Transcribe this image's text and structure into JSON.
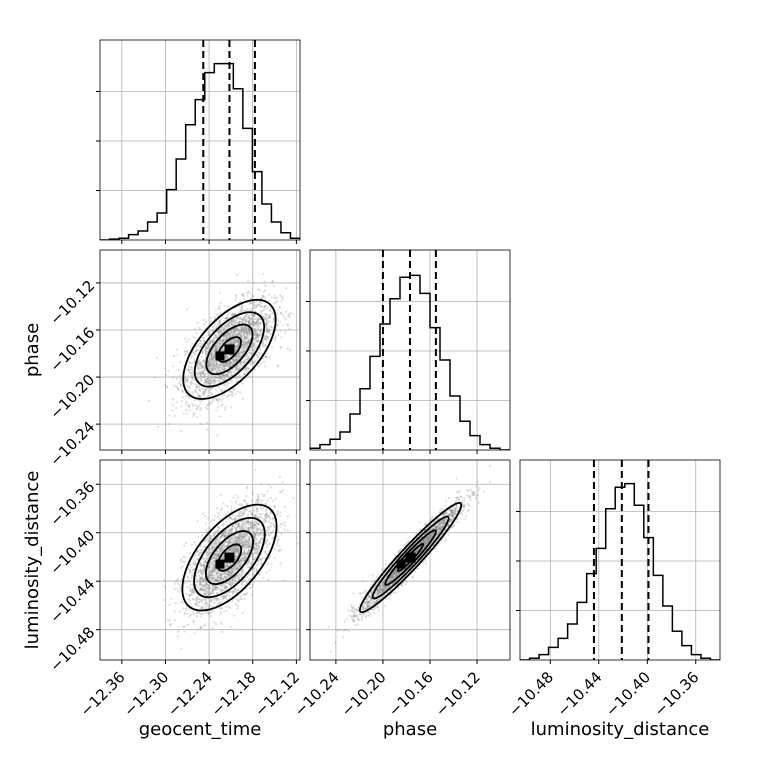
{
  "chart_data": {
    "type": "corner",
    "parameters": [
      {
        "name": "geocent_time",
        "label": "geocent_time",
        "lim": [
          -12.39,
          -12.115
        ],
        "ticks": [
          -12.36,
          -12.3,
          -12.24,
          -12.18,
          -12.12
        ],
        "tick_labels": [
          "−12.36",
          "−12.30",
          "−12.24",
          "−12.18",
          "−12.12"
        ],
        "mean": -12.212,
        "sigma": 0.0295,
        "quantiles": [
          -12.248,
          -12.212,
          -12.177
        ],
        "hist": [
          0.0,
          0.005,
          0.01,
          0.03,
          0.05,
          0.1,
          0.15,
          0.28,
          0.45,
          0.64,
          0.78,
          0.93,
          0.98,
          0.98,
          0.84,
          0.62,
          0.38,
          0.2,
          0.1,
          0.04,
          0.01
        ]
      },
      {
        "name": "phase",
        "label": "phase",
        "lim": [
          -10.262,
          -10.092
        ],
        "ticks": [
          -10.24,
          -10.2,
          -10.16,
          -10.12
        ],
        "tick_labels": [
          "−10.24",
          "−10.20",
          "−10.16",
          "−10.12"
        ],
        "mean": -10.1765,
        "sigma": 0.0205,
        "quantiles": [
          -10.2,
          -10.177,
          -10.155
        ],
        "hist": [
          0.01,
          0.03,
          0.06,
          0.1,
          0.2,
          0.34,
          0.52,
          0.7,
          0.84,
          0.96,
          0.97,
          0.87,
          0.68,
          0.5,
          0.3,
          0.16,
          0.08,
          0.03,
          0.01,
          0.0
        ]
      },
      {
        "name": "luminosity_distance",
        "label": "luminosity_distance",
        "lim": [
          -10.505,
          -10.34
        ],
        "ticks": [
          -10.48,
          -10.44,
          -10.4,
          -10.36
        ],
        "tick_labels": [
          "−10.48",
          "−10.44",
          "−10.40",
          "−10.36"
        ],
        "mean": -10.4205,
        "sigma": 0.0215,
        "quantiles": [
          -10.444,
          -10.421,
          -10.399
        ],
        "hist": [
          0.0,
          0.01,
          0.03,
          0.07,
          0.12,
          0.2,
          0.32,
          0.48,
          0.62,
          0.84,
          0.96,
          0.98,
          0.86,
          0.68,
          0.47,
          0.3,
          0.16,
          0.08,
          0.03,
          0.01,
          0.0
        ]
      }
    ],
    "correlations": [
      {
        "x": "geocent_time",
        "y": "phase",
        "rho": 0.6
      },
      {
        "x": "geocent_time",
        "y": "luminosity_distance",
        "rho": 0.6
      },
      {
        "x": "phase",
        "y": "luminosity_distance",
        "rho": 0.96
      }
    ],
    "contour_levels_sigma": [
      0.5,
      1.0,
      1.5,
      2.0
    ],
    "grid": true,
    "quantile_lines": "dashed"
  }
}
